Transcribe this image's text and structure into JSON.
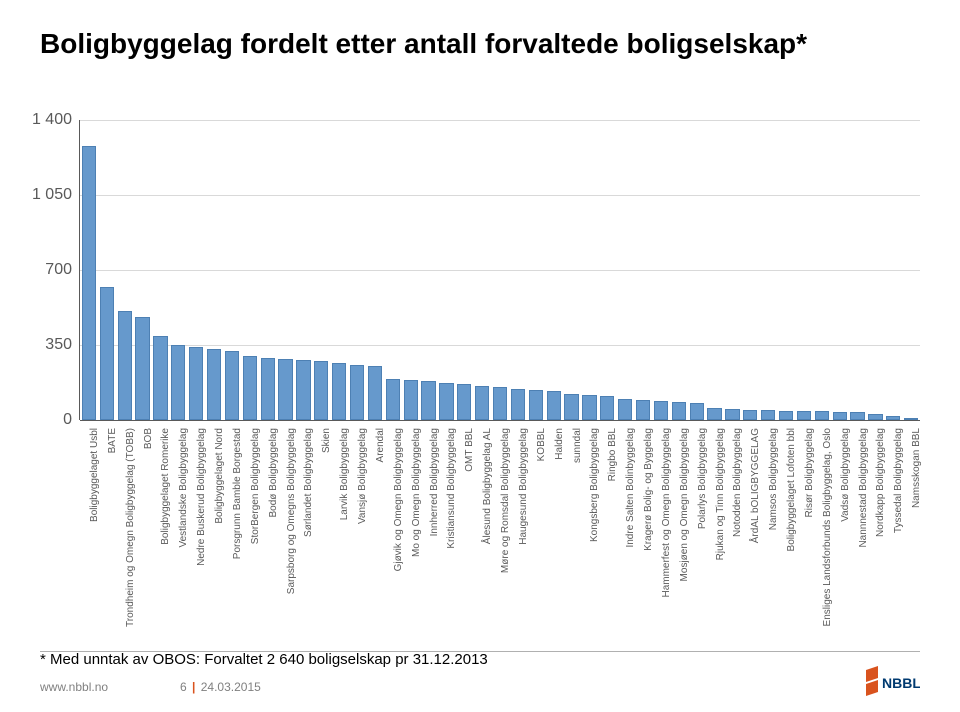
{
  "title": "Boligbyggelag fordelt etter antall forvaltede boligselskap*",
  "chart": {
    "type": "bar",
    "ylim": [
      0,
      1400
    ],
    "yticks": [
      0,
      350,
      700,
      1050,
      1400
    ],
    "bar_color": "#6699cc",
    "bar_border": "#4d80b3",
    "grid_color": "#d9d9d9",
    "axis_color": "#595959",
    "background_color": "#ffffff",
    "label_fontsize": 10,
    "tick_fontsize": 16,
    "categories": [
      "Boligbyggelaget Usbl",
      "BATE",
      "Trondheim og Omegn Boligbyggelag (TOBB)",
      "BOB",
      "Boligbyggelaget Romerike",
      "Vestlandske Boligbyggelag",
      "Nedre Buskerud Boligbyggelag",
      "Boligbyggelaget Nord",
      "Porsgrunn Bamble Borgestad",
      "StorBergen Boligbyggelag",
      "Bodø Boligbyggelag",
      "Sarpsborg og Omegns Boligbyggelag",
      "Sørlandet Boligbyggelag",
      "Skien",
      "Larvik Boligbyggelag",
      "Vansjø Boligbyggelag",
      "Arendal",
      "Gjøvik og Omegn Boligbyggelag",
      "Mo og Omegn Boligbyggelag",
      "Innherred Boligbyggelag",
      "Kristiansund Boligbyggelag",
      "OMT BBL",
      "Ålesund Boligbyggelag AL",
      "Møre og Romsdal Boligbyggelag",
      "Haugesund Boligbyggelag",
      "KOBBL",
      "Halden",
      "sunndal",
      "Kongsberg Boligbyggelag",
      "Ringbo BBL",
      "Indre Salten Bolinbyggelag",
      "Kragerø Bolig- og Byggelag",
      "Hammerfest og Omegn Boligbyggelag",
      "Mosjøen og Omegn Boligbyggelag",
      "Polarlys Boligbyggelag",
      "Rjukan og Tinn Boligbyggelag",
      "Notodden Boligbyggelag",
      "ÅrdAL bOLIGBYGGELAG",
      "Namsos Boligbyggelag",
      "Boligbyggelaget Lofoten bbl",
      "Risør Boligbyggelag",
      "Ensliges Landsforbunds Boligbyggelag, Oslo",
      "Vadsø Boligbyggelag",
      "Nannnestad Boligbyggelag",
      "Nordkapp Boligbyggelag",
      "Tyssedal Boligbyggelag",
      "Namsskogan BBL"
    ],
    "values": [
      1280,
      620,
      510,
      480,
      390,
      350,
      340,
      330,
      320,
      300,
      290,
      285,
      280,
      275,
      265,
      255,
      250,
      190,
      185,
      180,
      175,
      170,
      160,
      155,
      145,
      140,
      135,
      120,
      115,
      110,
      100,
      95,
      90,
      85,
      80,
      55,
      50,
      48,
      46,
      44,
      42,
      40,
      38,
      36,
      30,
      20,
      10
    ]
  },
  "footnote": "* Med unntak av OBOS: Forvaltet 2 640 boligselskap pr 31.12.2013",
  "footer": {
    "url": "www.nbbl.no",
    "page": "6",
    "date": "24.03.2015"
  },
  "logo": {
    "text": "NBBL",
    "shape_color": "#d9531e",
    "text_color": "#003a70"
  }
}
